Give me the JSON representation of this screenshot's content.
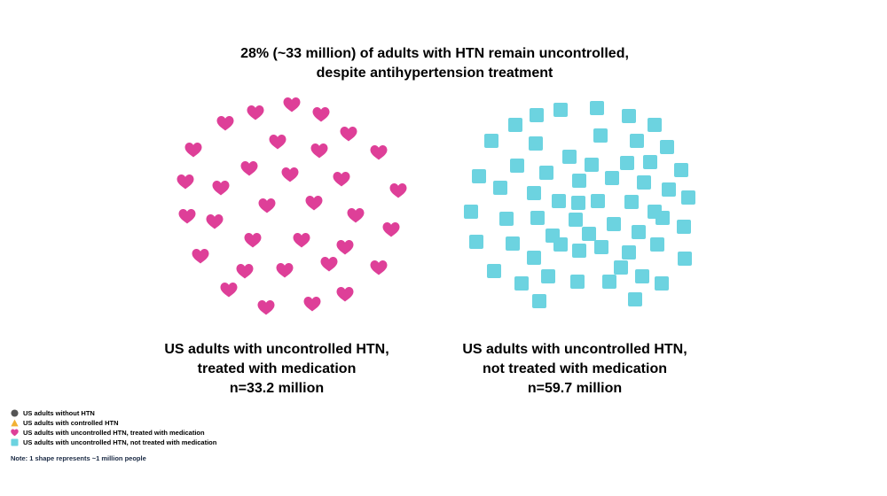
{
  "title": {
    "line1": "28% (~33 million) of adults with HTN remain uncontrolled,",
    "line2": "despite antihypertension treatment"
  },
  "colors": {
    "heart": "#de3f98",
    "square": "#6cd3e0",
    "circle": "#555555",
    "triangle": "#f2b134"
  },
  "chart_data": {
    "type": "pictogram",
    "unit": "1 shape represents ~1 million people",
    "groups": [
      {
        "name": "US adults with uncontrolled HTN, treated with medication",
        "shape": "heart-icon",
        "value_millions": 33.2,
        "caption": [
          "US adults with uncontrolled HTN,",
          "treated with medication",
          "n=33.2 million"
        ]
      },
      {
        "name": "US adults with uncontrolled HTN, not treated with medication",
        "shape": "square-icon",
        "value_millions": 59.7,
        "caption": [
          "US adults with uncontrolled HTN,",
          "not treated with medication",
          "n=59.7 million"
        ]
      }
    ]
  },
  "legend": [
    {
      "icon": "circle-icon",
      "label": "US adults without HTN"
    },
    {
      "icon": "triangle-icon",
      "label": "US adults with controlled HTN"
    },
    {
      "icon": "heart-icon",
      "label": "US adults with uncontrolled HTN, treated with medication"
    },
    {
      "icon": "square-icon",
      "label": "US adults with uncontrolled HTN, not treated with medication"
    }
  ],
  "note": "Note: 1 shape represents ~1 million people"
}
